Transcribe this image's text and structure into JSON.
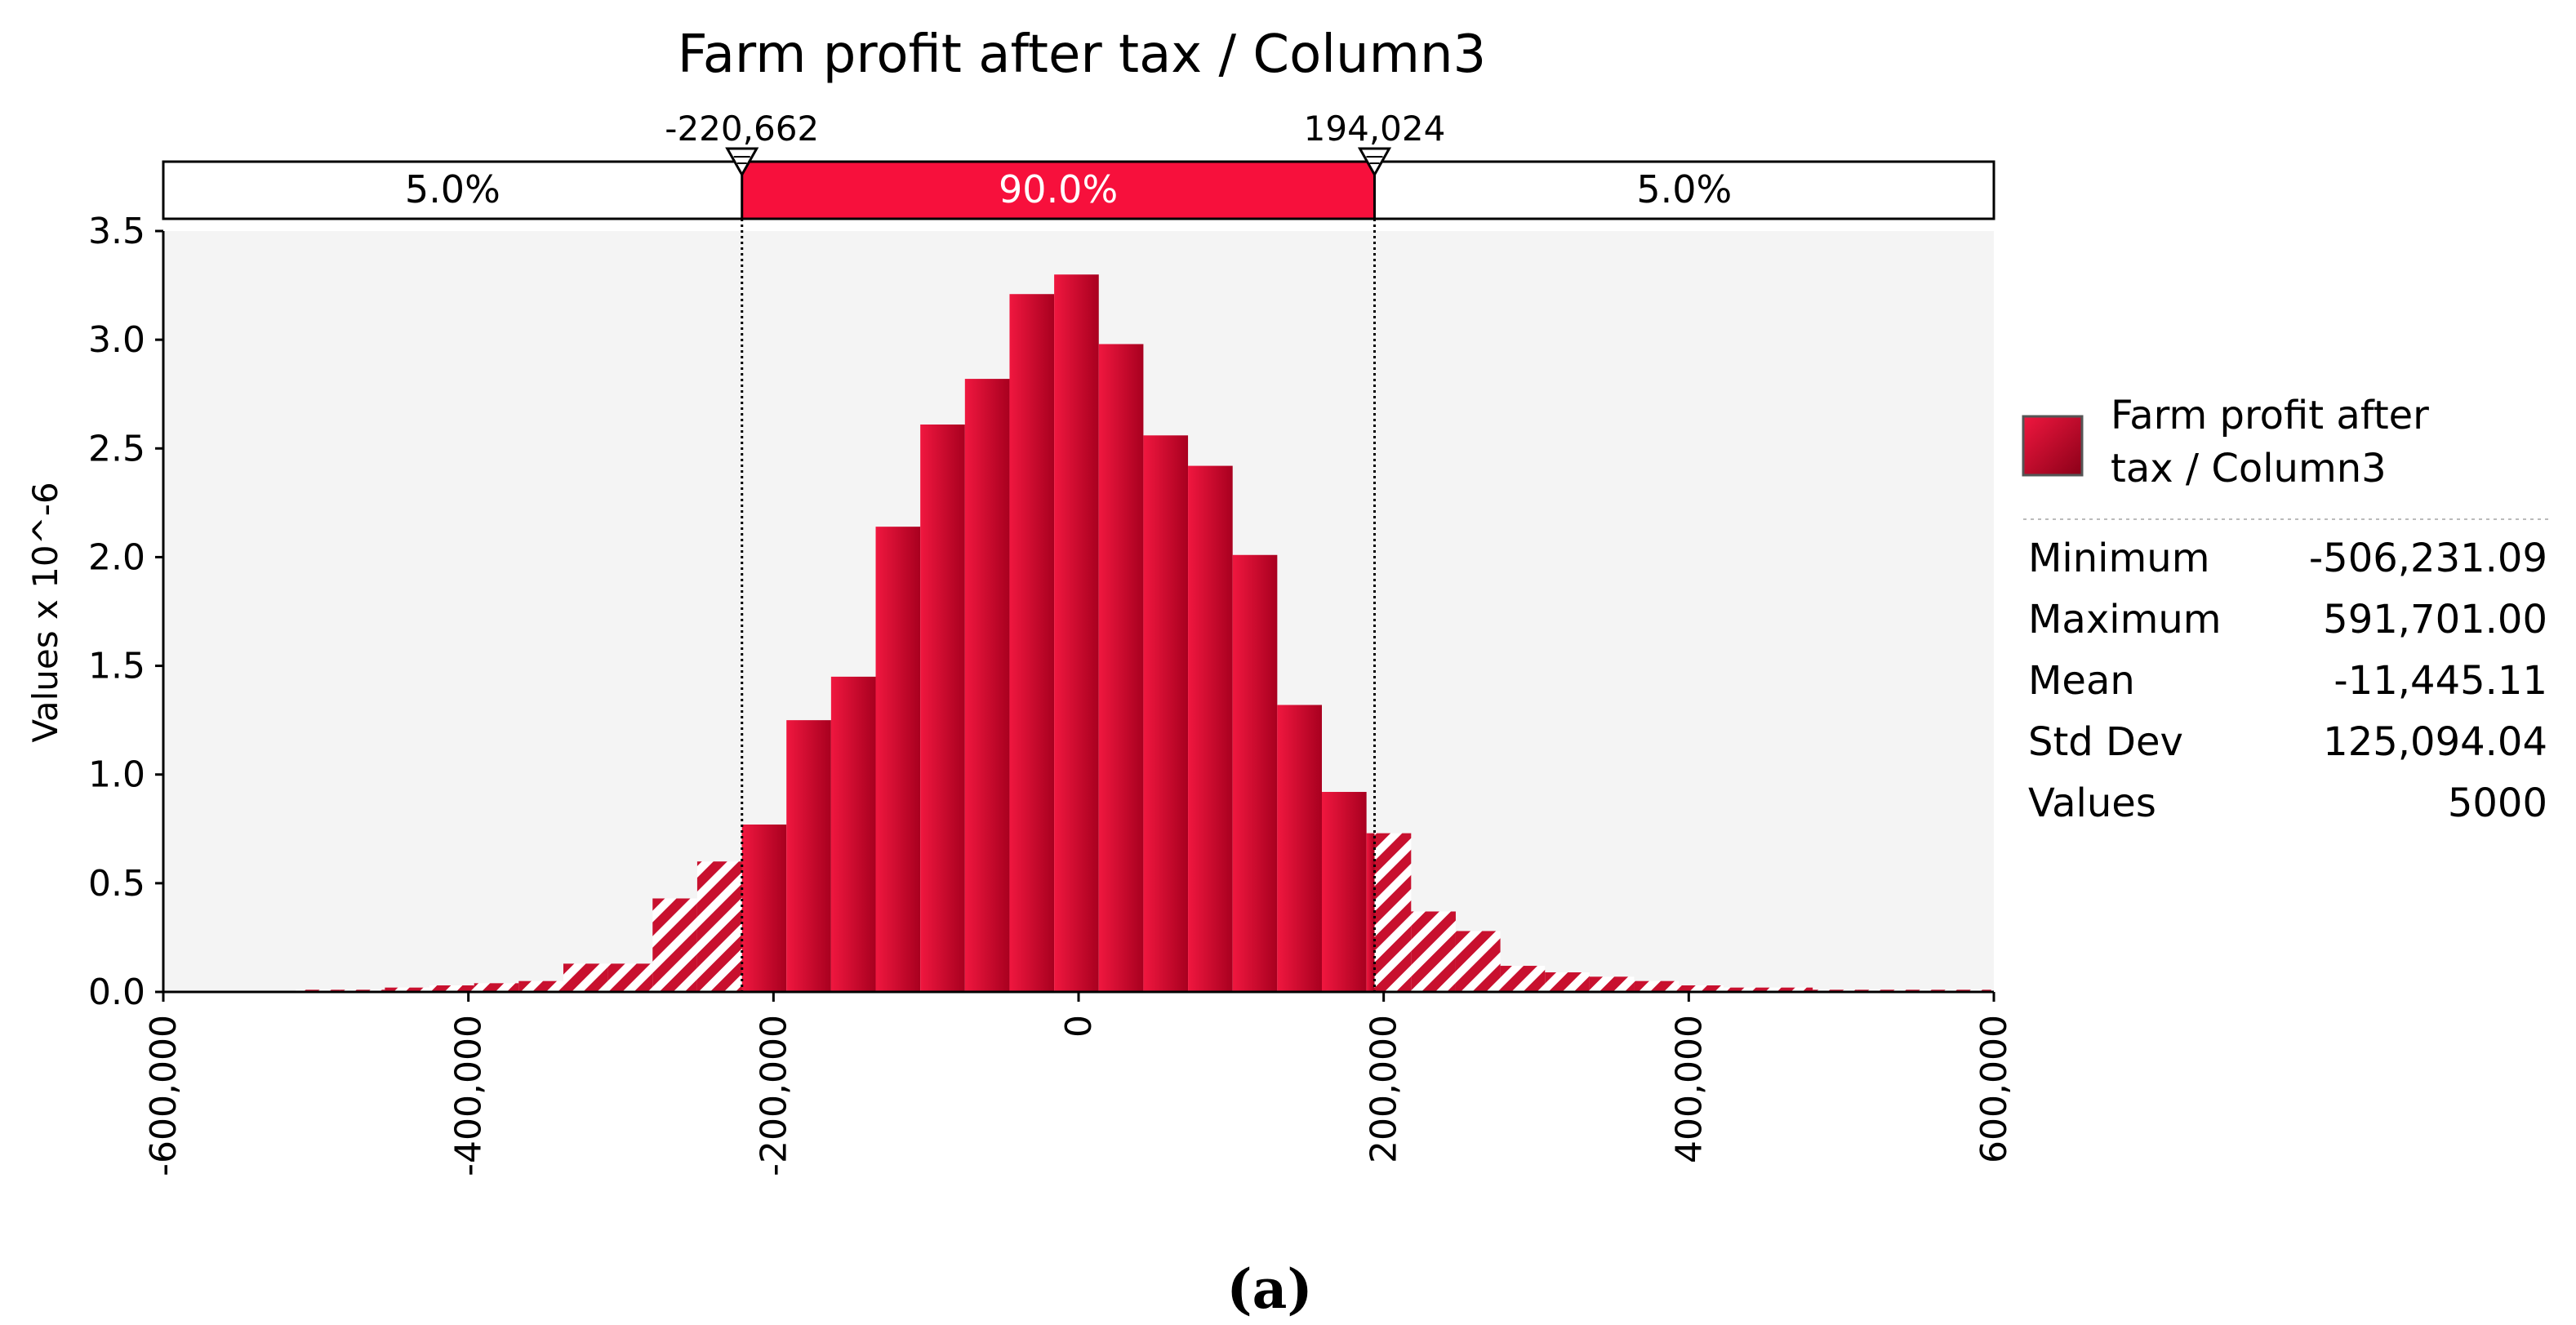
{
  "chart_data": {
    "type": "bar",
    "title": "Farm profit after tax / Column3",
    "ylabel": "Values x 10^-6",
    "xlabel": "",
    "xlim": [
      -600000,
      600000
    ],
    "ylim": [
      0,
      3.5
    ],
    "grid": false,
    "x_ticks": [
      "-600,000",
      "-400,000",
      "-200,000",
      "0",
      "200,000",
      "400,000",
      "600,000"
    ],
    "x_tick_values": [
      -600000,
      -400000,
      -200000,
      0,
      200000,
      400000,
      600000
    ],
    "y_ticks": [
      "0.0",
      "0.5",
      "1.0",
      "1.5",
      "2.0",
      "2.5",
      "3.0",
      "3.5"
    ],
    "y_tick_values": [
      0,
      0.5,
      1.0,
      1.5,
      2.0,
      2.5,
      3.0,
      3.5
    ],
    "bin_width": 29250,
    "bin_start": -513250,
    "values": [
      0.01,
      0.01,
      0.02,
      0.03,
      0.04,
      0.05,
      0.13,
      0.13,
      0.43,
      0.6,
      0.77,
      1.25,
      1.45,
      2.14,
      2.61,
      2.82,
      3.21,
      3.3,
      2.98,
      2.56,
      2.42,
      2.01,
      1.32,
      0.92,
      0.73,
      0.37,
      0.28,
      0.12,
      0.09,
      0.07,
      0.05,
      0.03,
      0.02,
      0.02,
      0.01,
      0.01,
      0.01,
      0.01
    ],
    "delimiters": {
      "left": {
        "value": -220662,
        "label": "-220,662"
      },
      "right": {
        "value": 194024,
        "label": "194,024"
      }
    },
    "regions": [
      {
        "label": "5.0%"
      },
      {
        "label": "90.0%"
      },
      {
        "label": "5.0%"
      }
    ],
    "legend": {
      "placement": "right",
      "series_name": "Farm profit after tax / Column3",
      "series_lines": [
        "Farm profit after",
        "tax / Column3"
      ],
      "stats": [
        {
          "name": "Minimum",
          "value": "-506,231.09"
        },
        {
          "name": "Maximum",
          "value": "591,701.00"
        },
        {
          "name": "Mean",
          "value": "-11,445.11"
        },
        {
          "name": "Std Dev",
          "value": "125,094.04"
        },
        {
          "name": "Values",
          "value": "5000"
        }
      ]
    },
    "colors": {
      "bar_light": "#f0173f",
      "bar_dark": "#a8001f",
      "middle_band": "#f7103c",
      "plot_background": "#f4f4f4"
    }
  },
  "caption": "(a)"
}
